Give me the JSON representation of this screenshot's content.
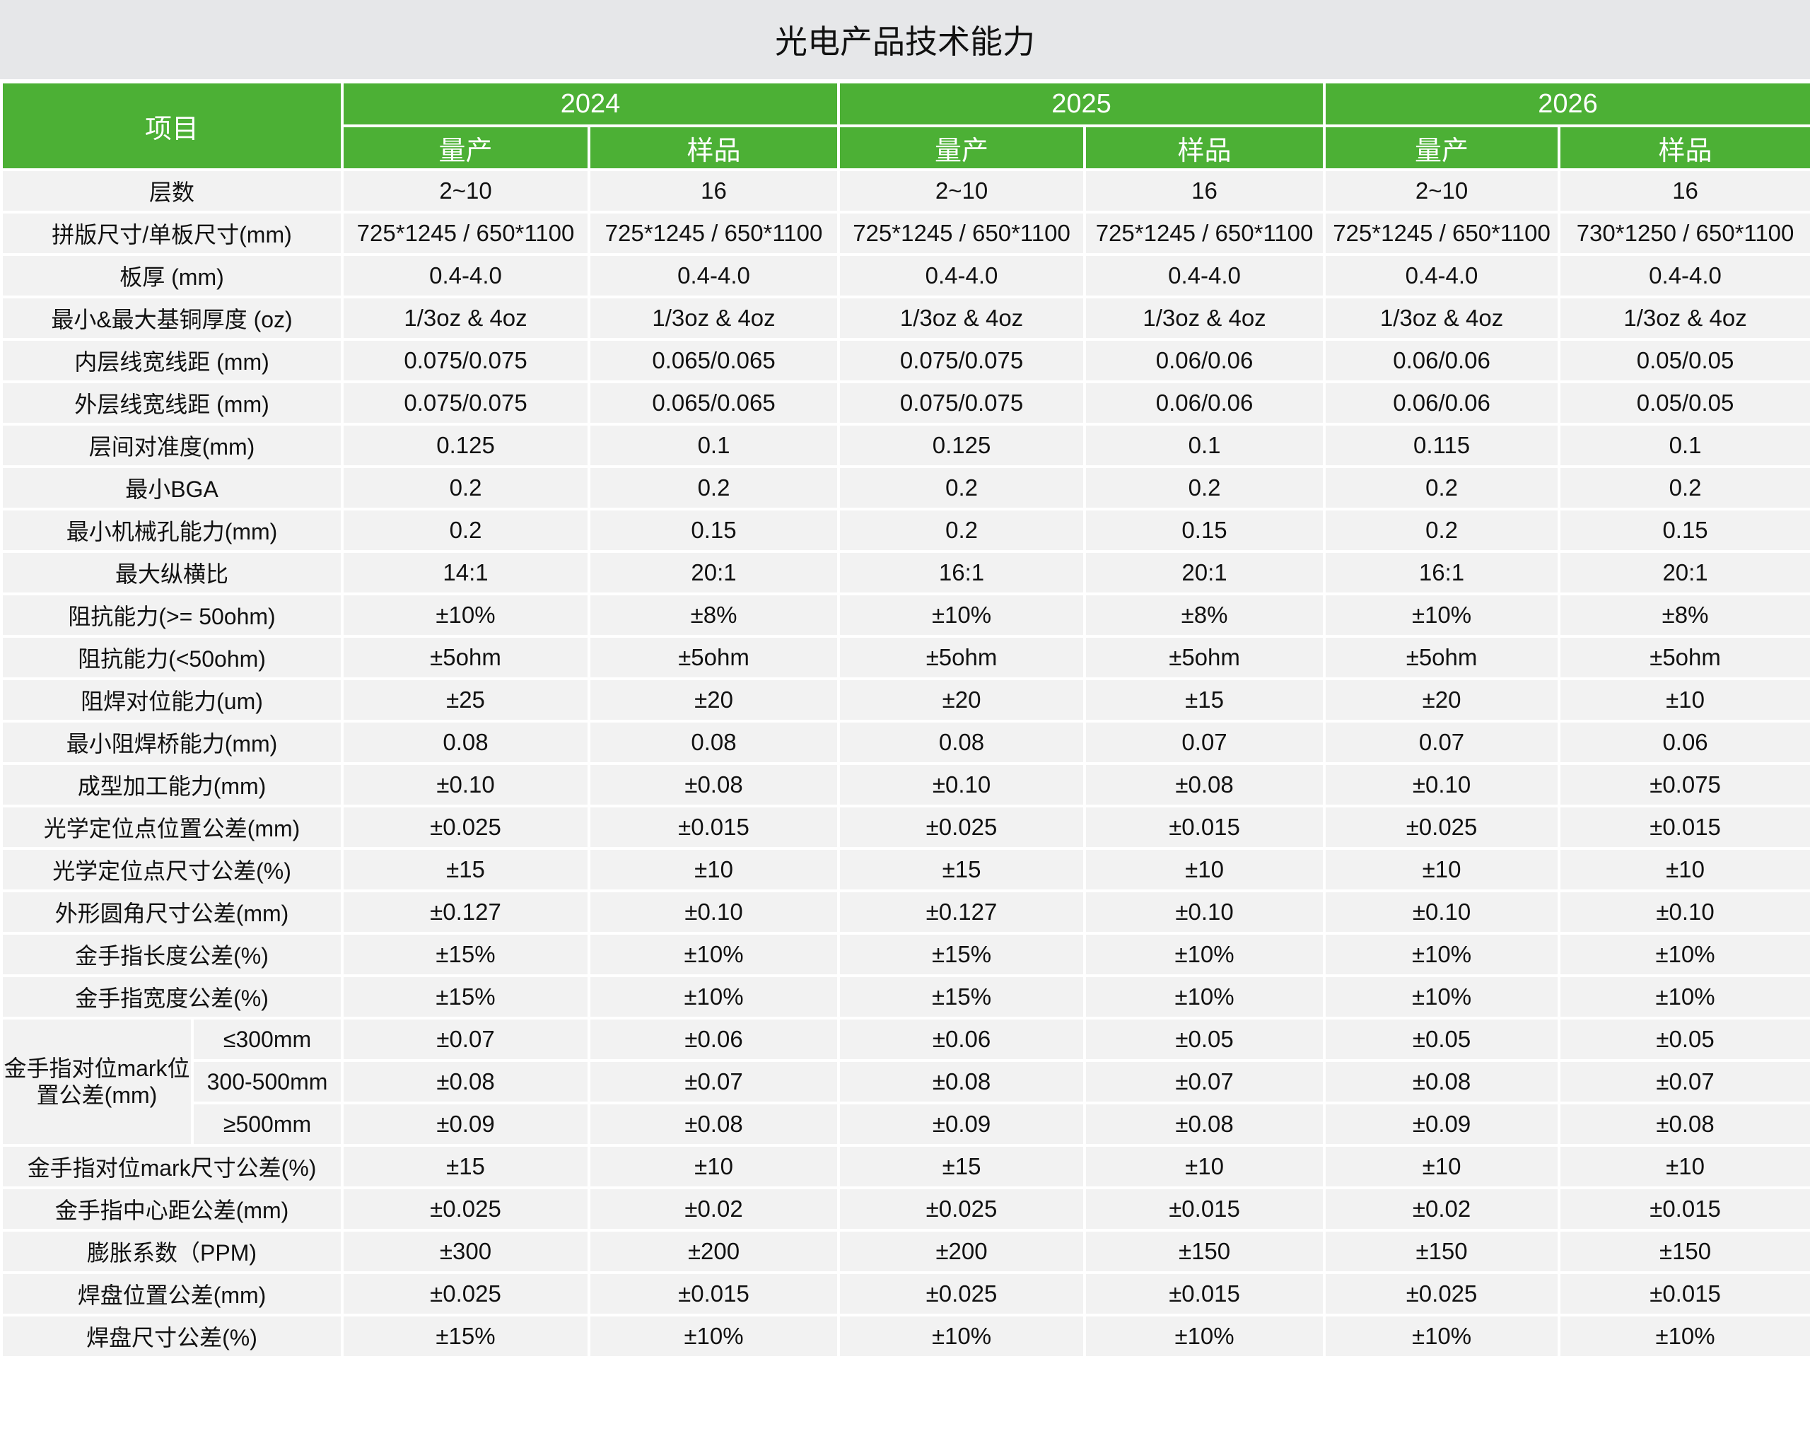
{
  "title": "光电产品技术能力",
  "header": {
    "item": "项目",
    "years": [
      "2024",
      "2025",
      "2026"
    ],
    "sub": [
      "量产",
      "样品",
      "量产",
      "样品",
      "量产",
      "样品"
    ]
  },
  "colors": {
    "header_green": "#4cb035",
    "row_bg": "#f2f2f2",
    "title_bg": "#e6e7e9"
  },
  "rows_top": [
    {
      "label": "层数",
      "values": [
        "2~10",
        "16",
        "2~10",
        "16",
        "2~10",
        "16"
      ]
    },
    {
      "label": "拼版尺寸/单板尺寸(mm)",
      "values": [
        "725*1245 / 650*1100",
        "725*1245 / 650*1100",
        "725*1245 / 650*1100",
        "725*1245 / 650*1100",
        "725*1245 / 650*1100",
        "730*1250 / 650*1100"
      ]
    },
    {
      "label": "板厚 (mm)",
      "values": [
        "0.4-4.0",
        "0.4-4.0",
        "0.4-4.0",
        "0.4-4.0",
        "0.4-4.0",
        "0.4-4.0"
      ]
    },
    {
      "label": "最小&最大基铜厚度 (oz)",
      "values": [
        "1/3oz & 4oz",
        "1/3oz & 4oz",
        "1/3oz & 4oz",
        "1/3oz & 4oz",
        "1/3oz & 4oz",
        "1/3oz & 4oz"
      ]
    },
    {
      "label": "内层线宽线距 (mm)",
      "values": [
        "0.075/0.075",
        "0.065/0.065",
        "0.075/0.075",
        "0.06/0.06",
        "0.06/0.06",
        "0.05/0.05"
      ]
    },
    {
      "label": "外层线宽线距 (mm)",
      "values": [
        "0.075/0.075",
        "0.065/0.065",
        "0.075/0.075",
        "0.06/0.06",
        "0.06/0.06",
        "0.05/0.05"
      ]
    },
    {
      "label": "层间对准度(mm)",
      "values": [
        "0.125",
        "0.1",
        "0.125",
        "0.1",
        "0.115",
        "0.1"
      ]
    },
    {
      "label": "最小BGA",
      "values": [
        "0.2",
        "0.2",
        "0.2",
        "0.2",
        "0.2",
        "0.2"
      ]
    },
    {
      "label": "最小机械孔能力(mm)",
      "values": [
        "0.2",
        "0.15",
        "0.2",
        "0.15",
        "0.2",
        "0.15"
      ]
    },
    {
      "label": "最大纵横比",
      "values": [
        "14:1",
        "20:1",
        "16:1",
        "20:1",
        "16:1",
        "20:1"
      ]
    },
    {
      "label": "阻抗能力(>= 50ohm)",
      "values": [
        "±10%",
        "±8%",
        "±10%",
        "±8%",
        "±10%",
        "±8%"
      ]
    },
    {
      "label": "阻抗能力(<50ohm)",
      "values": [
        "±5ohm",
        "±5ohm",
        "±5ohm",
        "±5ohm",
        "±5ohm",
        "±5ohm"
      ]
    },
    {
      "label": "阻焊对位能力(um)",
      "values": [
        "±25",
        "±20",
        "±20",
        "±15",
        "±20",
        "±10"
      ]
    },
    {
      "label": "最小阻焊桥能力(mm)",
      "values": [
        "0.08",
        "0.08",
        "0.08",
        "0.07",
        "0.07",
        "0.06"
      ]
    },
    {
      "label": "成型加工能力(mm)",
      "values": [
        "±0.10",
        "±0.08",
        "±0.10",
        "±0.08",
        "±0.10",
        "±0.075"
      ]
    },
    {
      "label": "光学定位点位置公差(mm)",
      "values": [
        "±0.025",
        "±0.015",
        "±0.025",
        "±0.015",
        "±0.025",
        "±0.015"
      ]
    },
    {
      "label": "光学定位点尺寸公差(%)",
      "values": [
        "±15",
        "±10",
        "±15",
        "±10",
        "±10",
        "±10"
      ]
    },
    {
      "label": "外形圆角尺寸公差(mm)",
      "values": [
        "±0.127",
        "±0.10",
        "±0.127",
        "±0.10",
        "±0.10",
        "±0.10"
      ]
    },
    {
      "label": "金手指长度公差(%)",
      "values": [
        "±15%",
        "±10%",
        "±15%",
        "±10%",
        "±10%",
        "±10%"
      ]
    },
    {
      "label": "金手指宽度公差(%)",
      "values": [
        "±15%",
        "±10%",
        "±15%",
        "±10%",
        "±10%",
        "±10%"
      ]
    }
  ],
  "group": {
    "label": "金手指对位mark位置公差(mm)",
    "subrows": [
      {
        "label": "≤300mm",
        "values": [
          "±0.07",
          "±0.06",
          "±0.06",
          "±0.05",
          "±0.05",
          "±0.05"
        ]
      },
      {
        "label": "300-500mm",
        "values": [
          "±0.08",
          "±0.07",
          "±0.08",
          "±0.07",
          "±0.08",
          "±0.07"
        ]
      },
      {
        "label": "≥500mm",
        "values": [
          "±0.09",
          "±0.08",
          "±0.09",
          "±0.08",
          "±0.09",
          "±0.08"
        ]
      }
    ]
  },
  "rows_bottom": [
    {
      "label": "金手指对位mark尺寸公差(%)",
      "values": [
        "±15",
        "±10",
        "±15",
        "±10",
        "±10",
        "±10"
      ]
    },
    {
      "label": "金手指中心距公差(mm)",
      "values": [
        "±0.025",
        "±0.02",
        "±0.025",
        "±0.015",
        "±0.02",
        "±0.015"
      ]
    },
    {
      "label": "膨胀系数（PPM)",
      "values": [
        "±300",
        "±200",
        "±200",
        "±150",
        "±150",
        "±150"
      ]
    },
    {
      "label": "焊盘位置公差(mm)",
      "values": [
        "±0.025",
        "±0.015",
        "±0.025",
        "±0.015",
        "±0.025",
        "±0.015"
      ]
    },
    {
      "label": "焊盘尺寸公差(%)",
      "values": [
        "±15%",
        "±10%",
        "±10%",
        "±10%",
        "±10%",
        "±10%"
      ]
    }
  ]
}
